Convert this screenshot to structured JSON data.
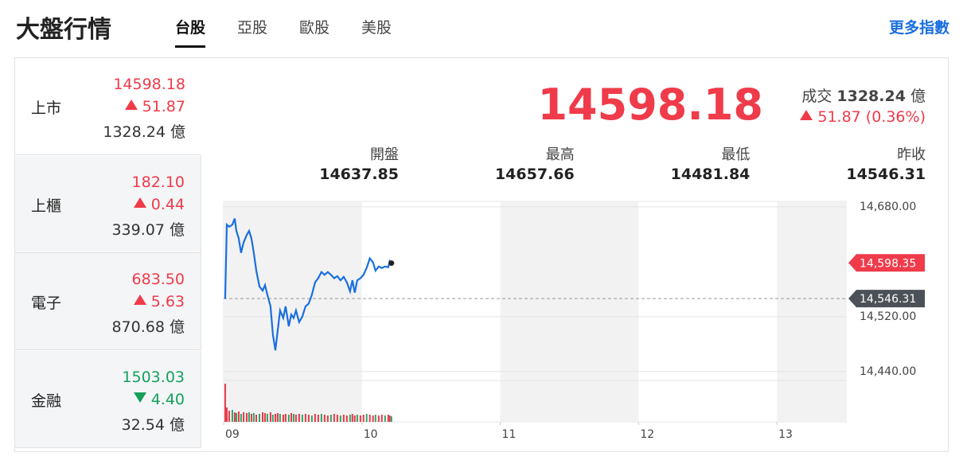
{
  "header": {
    "title": "大盤行情",
    "tabs": [
      "台股",
      "亞股",
      "歐股",
      "美股"
    ],
    "more": "更多指數"
  },
  "markets": [
    {
      "name": "上市",
      "price": "14598.18",
      "change": "51.87",
      "volume": "1328.24 億",
      "direction": "up"
    },
    {
      "name": "上櫃",
      "price": "182.10",
      "change": "0.44",
      "volume": "339.07 億",
      "direction": "up"
    },
    {
      "name": "電子",
      "price": "683.50",
      "change": "5.63",
      "volume": "870.68 億",
      "direction": "up"
    },
    {
      "name": "金融",
      "price": "1503.03",
      "change": "4.40",
      "volume": "32.54 億",
      "direction": "down"
    }
  ],
  "summary": {
    "price": "14598.18",
    "volume_label": "成交",
    "volume": "1328.24",
    "volume_unit": "億",
    "change": "51.87 (0.36%)"
  },
  "stats": [
    {
      "label": "開盤",
      "value": "14637.85"
    },
    {
      "label": "最高",
      "value": "14657.66"
    },
    {
      "label": "最低",
      "value": "14481.84"
    },
    {
      "label": "昨收",
      "value": "14546.31"
    }
  ],
  "chart_data": {
    "type": "line",
    "x": [
      9.011,
      9.023,
      9.04,
      9.063,
      9.08,
      9.092,
      9.109,
      9.126,
      9.144,
      9.167,
      9.184,
      9.201,
      9.218,
      9.236,
      9.259,
      9.282,
      9.299,
      9.316,
      9.339,
      9.356,
      9.374,
      9.391,
      9.408,
      9.431,
      9.448,
      9.471,
      9.489,
      9.506,
      9.523,
      9.546,
      9.569,
      9.592,
      9.615,
      9.638,
      9.661,
      9.684,
      9.707,
      9.73,
      9.753,
      9.776,
      9.799,
      9.822,
      9.845,
      9.868,
      9.891,
      9.914,
      9.931,
      9.948,
      9.966,
      9.989,
      10.011,
      10.034,
      10.057,
      10.08,
      10.098,
      10.121,
      10.144,
      10.167,
      10.19,
      10.201,
      10.213
    ],
    "series": [
      {
        "color": "#1a6fe0",
        "values": [
          14546,
          14654,
          14651,
          14654,
          14663,
          14645,
          14634,
          14613,
          14628,
          14639,
          14645,
          14634,
          14613,
          14587,
          14564,
          14558,
          14566,
          14552,
          14535,
          14494,
          14471,
          14500,
          14529,
          14518,
          14535,
          14506,
          14523,
          14518,
          14529,
          14512,
          14520,
          14535,
          14539,
          14552,
          14570,
          14576,
          14585,
          14581,
          14585,
          14581,
          14576,
          14579,
          14573,
          14578,
          14570,
          14557,
          14573,
          14555,
          14573,
          14576,
          14581,
          14591,
          14605,
          14599,
          14587,
          14593,
          14591,
          14593,
          14592,
          14601,
          14598
        ]
      },
      {
        "axis": "y2",
        "type": "bar",
        "colors": [
          "#e63946",
          "#2fa36b"
        ],
        "values": [
          48,
          18,
          14,
          15,
          12,
          11,
          13,
          10,
          12,
          11,
          12,
          10,
          11,
          9,
          10,
          12,
          11,
          10,
          12,
          9,
          10,
          11,
          10,
          9,
          10,
          9,
          11,
          10,
          9,
          10,
          9,
          10,
          9,
          8,
          10,
          9,
          10,
          9,
          8,
          9,
          10,
          9,
          8,
          9,
          8,
          9,
          10,
          8,
          9,
          8,
          9,
          10,
          9,
          8,
          9,
          8,
          9,
          8,
          9,
          8,
          7
        ],
        "up": [
          true,
          true,
          true,
          false,
          true,
          false,
          true,
          false,
          true,
          true,
          false,
          true,
          false,
          true,
          false,
          true,
          true,
          false,
          true,
          false,
          true,
          true,
          false,
          true,
          true,
          false,
          true,
          false,
          true,
          true,
          false,
          true,
          true,
          false,
          true,
          true,
          false,
          true,
          true,
          false,
          true,
          true,
          false,
          true,
          true,
          false,
          true,
          true,
          false,
          true,
          true,
          false,
          true,
          true,
          false,
          true,
          true,
          false,
          true,
          true,
          false
        ]
      }
    ],
    "xlim": [
      9,
      13.5
    ],
    "xticks": [
      {
        "value": 9,
        "label": "09"
      },
      10,
      11,
      12,
      13
    ],
    "ylim": [
      14427,
      14688
    ],
    "yticks": [
      {
        "value": 14680,
        "label": "14,680.00"
      },
      {
        "value": 14520,
        "label": "14,520.00"
      },
      {
        "value": 14440,
        "label": "14,440.00"
      }
    ],
    "y2lim": [
      0,
      50
    ],
    "last": {
      "value": 14598.35,
      "label": "14,598.35",
      "color": "#ef3b4a"
    },
    "prev_close": {
      "value": 14546.31,
      "label": "14,546.31",
      "color": "#4b5157"
    },
    "grid": true
  }
}
